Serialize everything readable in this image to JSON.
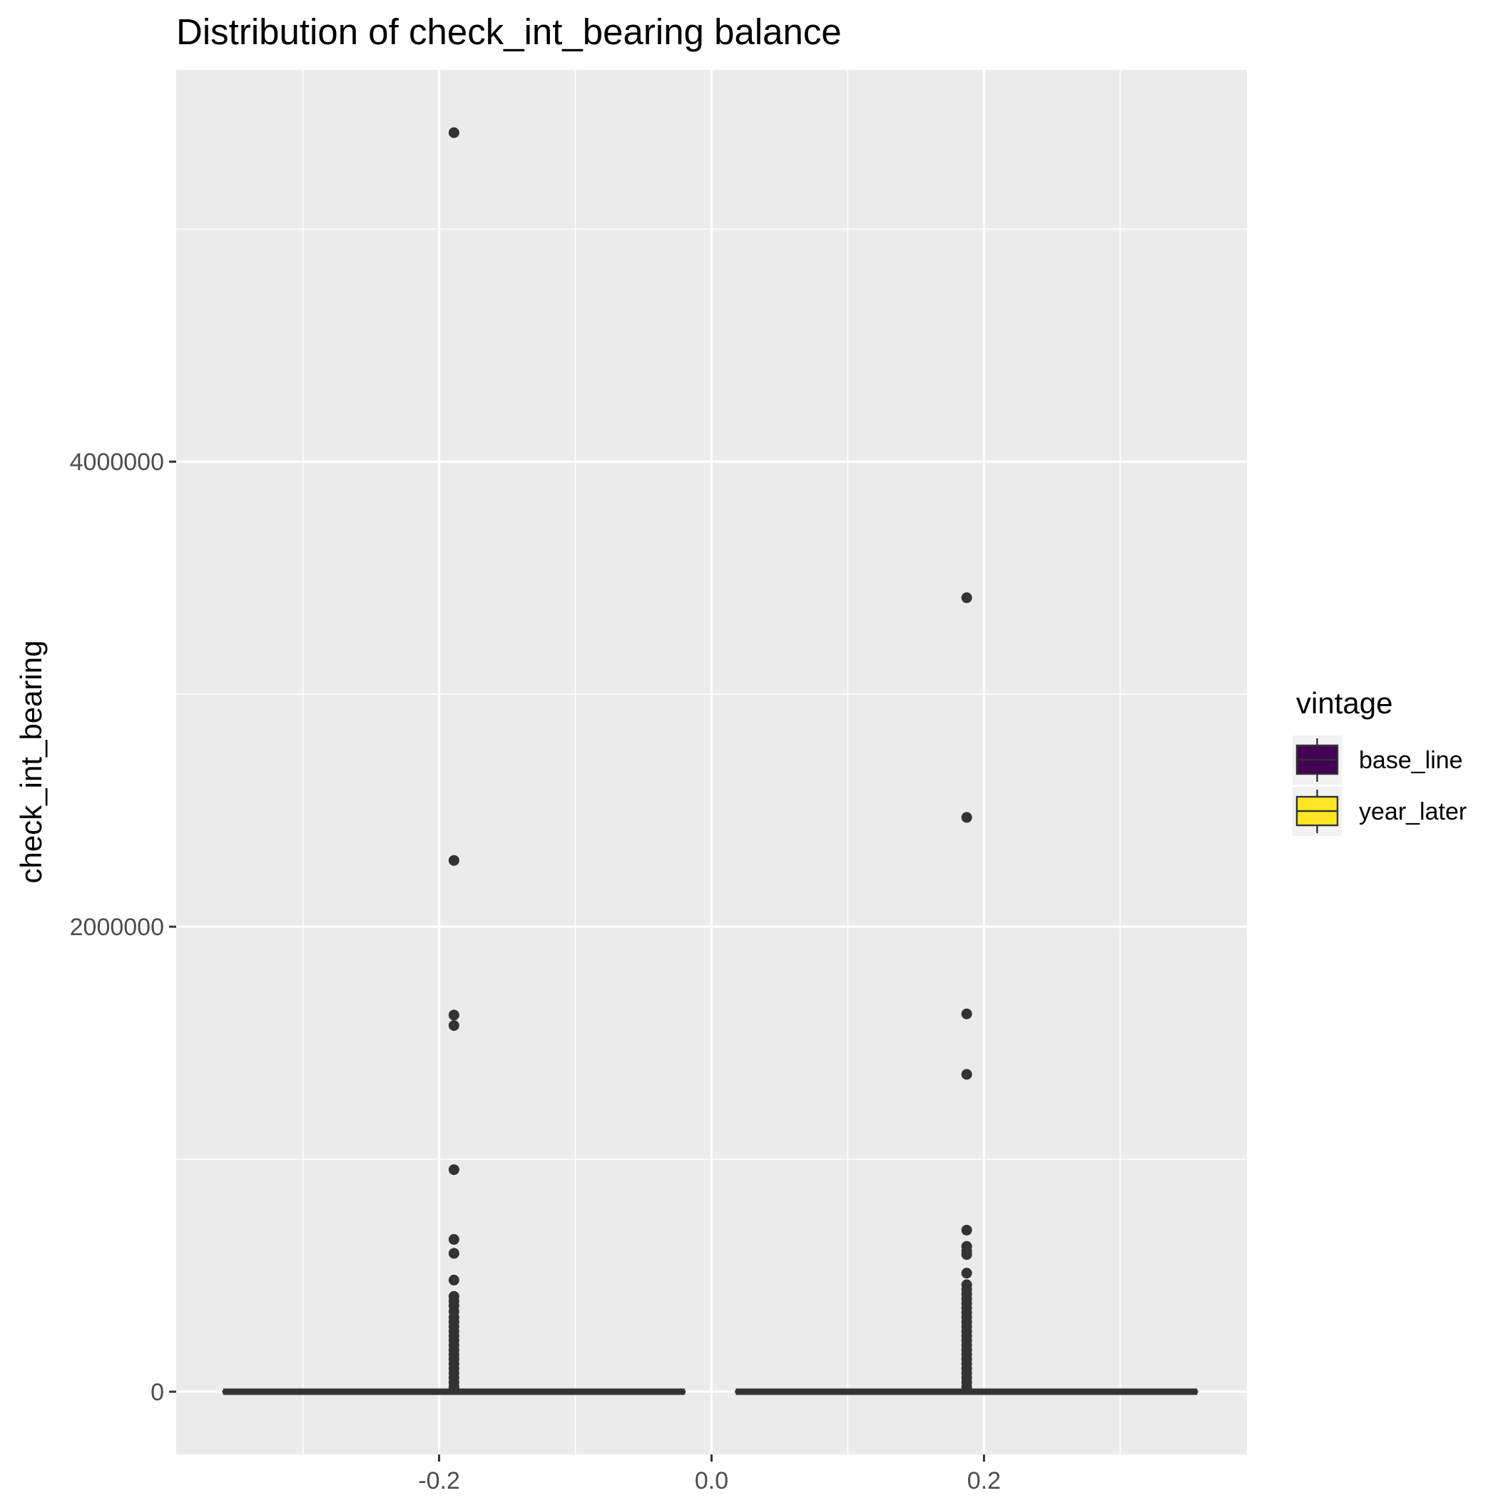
{
  "chart_data": {
    "type": "boxplot",
    "title": "Distribution of check_int_bearing balance",
    "xlabel": "",
    "ylabel": "check_int_bearing",
    "x_ticks": [
      -0.2,
      0.0,
      0.2
    ],
    "x_tick_labels": [
      "-0.2",
      "0.0",
      "0.2"
    ],
    "y_ticks": [
      0,
      2000000,
      4000000
    ],
    "y_tick_labels": [
      "0",
      "2000000",
      "4000000"
    ],
    "xlim": [
      -0.393,
      0.393
    ],
    "ylim": [
      -270000,
      5685000
    ],
    "grid": true,
    "legend_position": "right",
    "legend": {
      "title": "vintage",
      "entries": [
        {
          "name": "base_line",
          "color": "#440154"
        },
        {
          "name": "year_later",
          "color": "#FDE725"
        }
      ]
    },
    "series": [
      {
        "name": "base_line",
        "color": "#440154",
        "box_x_range": [
          -0.3577,
          -0.0205
        ],
        "outlier_x": -0.1891,
        "median": 0,
        "q1": 0,
        "q3": 0,
        "whisker_low": 0,
        "whisker_high": 0,
        "outliers": [
          5415000,
          2285000,
          1620000,
          1575000,
          955000,
          655000,
          595000,
          480000,
          410000,
          390000,
          370000,
          345000,
          320000,
          300000,
          280000,
          260000,
          240000,
          220000,
          200000,
          180000,
          160000,
          140000,
          120000,
          100000,
          80000,
          60000,
          40000,
          20000
        ]
      },
      {
        "name": "year_later",
        "color": "#FDE725",
        "box_x_range": [
          0.0186,
          0.3557
        ],
        "outlier_x": 0.1873,
        "median": 0,
        "q1": 0,
        "q3": 0,
        "whisker_low": 0,
        "whisker_high": 0,
        "outliers": [
          3415000,
          2470000,
          1625000,
          1365000,
          695000,
          625000,
          605000,
          590000,
          510000,
          460000,
          440000,
          420000,
          400000,
          380000,
          360000,
          340000,
          320000,
          300000,
          280000,
          260000,
          240000,
          220000,
          200000,
          180000,
          160000,
          140000,
          120000,
          100000,
          80000,
          60000,
          40000,
          20000
        ]
      }
    ]
  },
  "colors": {
    "panel_background": "#EBEBEB",
    "grid": "#FFFFFF",
    "points": "#333333",
    "box_outline": "#333333"
  }
}
